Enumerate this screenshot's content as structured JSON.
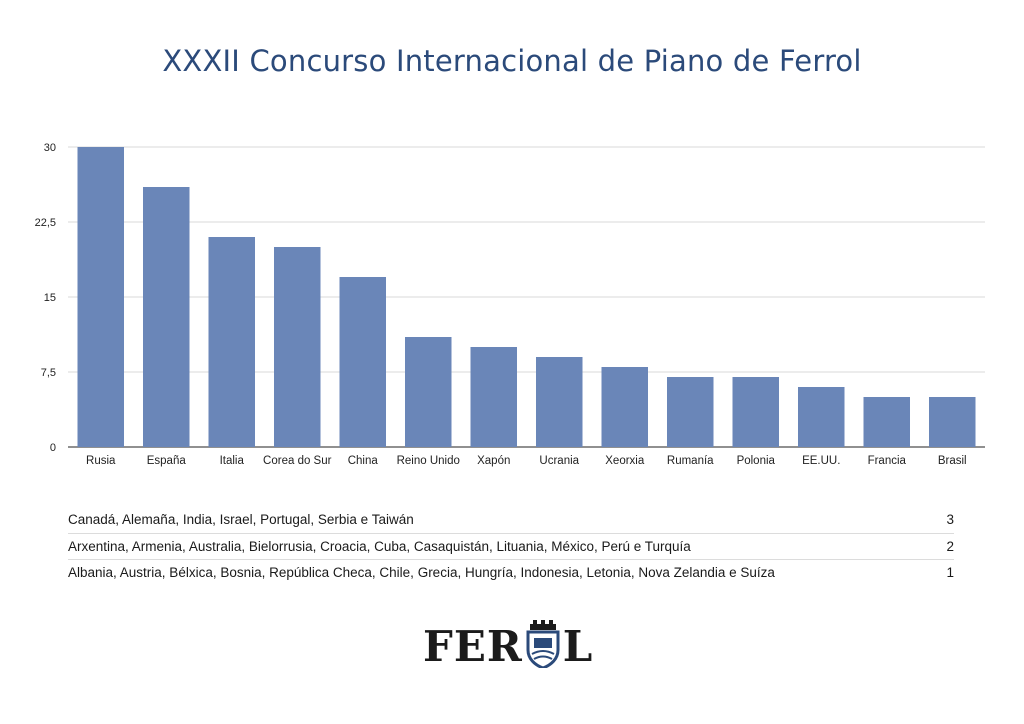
{
  "chart_data": {
    "type": "bar",
    "title": "XXXII Concurso Internacional de Piano de Ferrol",
    "categories": [
      "Rusia",
      "España",
      "Italia",
      "Corea do Sur",
      "China",
      "Reino Unido",
      "Xapón",
      "Ucrania",
      "Xeorxia",
      "Rumanía",
      "Polonia",
      "EE.UU.",
      "Francia",
      "Brasil"
    ],
    "values": [
      30,
      26,
      21,
      20,
      17,
      11,
      10,
      9,
      8,
      7,
      7,
      6,
      5,
      5
    ],
    "ylim": [
      0,
      30
    ],
    "yticks": [
      "0",
      "7,5",
      "15",
      "22,5",
      "30"
    ],
    "ytick_values": [
      0,
      7.5,
      15,
      22.5,
      30
    ],
    "grid": true,
    "bar_color": "#6a86b8"
  },
  "remaining_countries": [
    {
      "countries": "Canadá, Alemaña, India, Israel, Portugal, Serbia e Taiwán",
      "count": "3"
    },
    {
      "countries": "Arxentina, Armenia, Australia, Bielorrusia, Croacia, Cuba, Casaquistán, Lituania, México, Perú e Turquía",
      "count": "2"
    },
    {
      "countries": "Albania, Austria, Bélxica, Bosnia, República Checa, Chile, Grecia, Hungría, Indonesia, Letonia, Nova Zelandia e Suíza",
      "count": "1"
    }
  ],
  "logo": {
    "text_left": "FER",
    "text_right": "L",
    "emblem": "ferrol-coat-of-arms-icon"
  }
}
